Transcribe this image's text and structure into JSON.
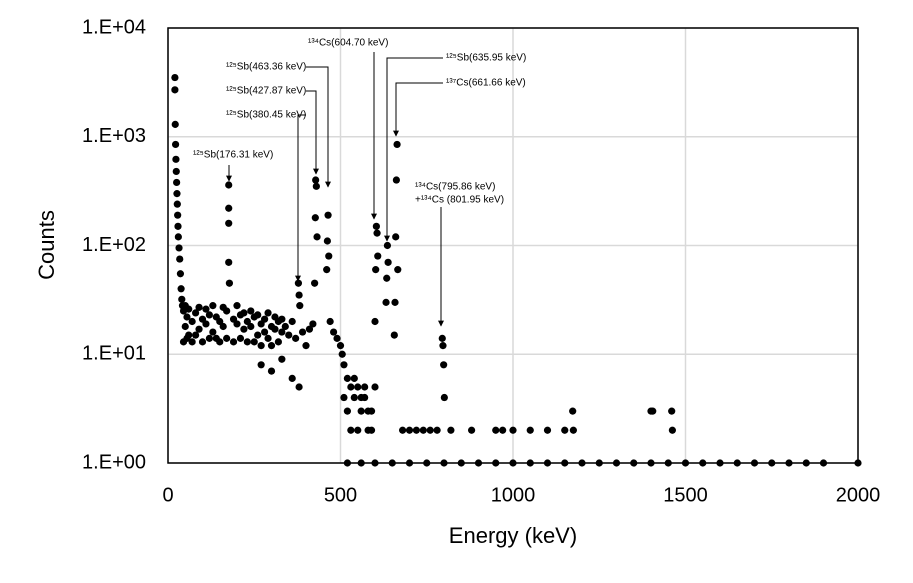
{
  "chart_data": {
    "type": "scatter",
    "xlabel": "Energy (keV)",
    "ylabel": "Counts",
    "color": "#000000",
    "grid": true,
    "log_y": true,
    "xlim": [
      0,
      2000
    ],
    "xticks": [
      0,
      500,
      1000,
      1500,
      2000
    ],
    "ylim": [
      1,
      10000
    ],
    "yticks": [
      {
        "value": 1,
        "label": "1.E+00"
      },
      {
        "value": 10,
        "label": "1.E+01"
      },
      {
        "value": 100,
        "label": "1.E+02"
      },
      {
        "value": 1000,
        "label": "1.E+03"
      },
      {
        "value": 10000,
        "label": "1.E+04"
      }
    ],
    "annotations": [
      "¹²⁵Sb(176.31 keV)",
      "¹²⁵Sb(380.45 keV)",
      "¹²⁵Sb(427.87 keV)",
      "¹²⁵Sb(463.36 keV)",
      "¹³⁴Cs(604.70 keV)",
      "¹²⁵Sb(635.95 keV)",
      "¹³⁷Cs(661.66 keV)",
      "¹³⁴Cs(795.86 keV)",
      "+¹³⁴Cs (801.95 keV)"
    ],
    "x": [
      20,
      20,
      21,
      22,
      23,
      24,
      25,
      26,
      27,
      28,
      29,
      30,
      32,
      34,
      36,
      38,
      40,
      42,
      45,
      50,
      55,
      60,
      70,
      80,
      90,
      100,
      110,
      120,
      130,
      140,
      150,
      160,
      170,
      190,
      200,
      210,
      220,
      230,
      240,
      250,
      260,
      270,
      280,
      290,
      300,
      310,
      320,
      330,
      45,
      50,
      55,
      60,
      70,
      80,
      90,
      100,
      110,
      120,
      130,
      140,
      150,
      160,
      170,
      190,
      200,
      210,
      220,
      230,
      240,
      250,
      260,
      270,
      280,
      290,
      300,
      310,
      320,
      330,
      270,
      300,
      330,
      360,
      380,
      176,
      176,
      176,
      176,
      178,
      378,
      380,
      382,
      340,
      350,
      360,
      370,
      390,
      400,
      410,
      420,
      425,
      427,
      428,
      430,
      432,
      460,
      462,
      464,
      466,
      470,
      480,
      490,
      500,
      505,
      510,
      520,
      530,
      540,
      550,
      560,
      570,
      580,
      590,
      600,
      510,
      520,
      530,
      540,
      550,
      560,
      570,
      580,
      590,
      600,
      602,
      604,
      606,
      608,
      632,
      634,
      636,
      638,
      656,
      658,
      660,
      662,
      664,
      666,
      680,
      700,
      720,
      740,
      760,
      780,
      795,
      797,
      799,
      801,
      820,
      880,
      950,
      970,
      1000,
      1050,
      1100,
      1150,
      1173,
      1175,
      1400,
      1405,
      1460,
      1462,
      520,
      560,
      600,
      650,
      700,
      750,
      800,
      850,
      900,
      950,
      1000,
      1050,
      1100,
      1150,
      1200,
      1250,
      1300,
      1350,
      1400,
      1450,
      1500,
      1550,
      1600,
      1650,
      1700,
      1750,
      1800,
      1850,
      1900,
      2000
    ],
    "values": [
      3500,
      2700,
      1300,
      850,
      620,
      480,
      380,
      300,
      240,
      190,
      150,
      120,
      95,
      75,
      55,
      40,
      32,
      28,
      25,
      18,
      22,
      15,
      20,
      24,
      17,
      21,
      19,
      23,
      16,
      22,
      20,
      18,
      25,
      21,
      19,
      23,
      17,
      20,
      18,
      22,
      15,
      19,
      16,
      14,
      18,
      17,
      20,
      16,
      13,
      28,
      14,
      26,
      13,
      15,
      27,
      13,
      26,
      14,
      28,
      14,
      13,
      27,
      14,
      13,
      28,
      14,
      24,
      13,
      25,
      13,
      23,
      12,
      21,
      24,
      12,
      22,
      13,
      21,
      8,
      7,
      9,
      6,
      5,
      360,
      220,
      160,
      70,
      45,
      45,
      35,
      28,
      18,
      15,
      20,
      14,
      16,
      12,
      17,
      19,
      45,
      180,
      400,
      350,
      120,
      60,
      110,
      190,
      80,
      20,
      16,
      14,
      12,
      10,
      8,
      6,
      5,
      4,
      5,
      3,
      4,
      2,
      3,
      5,
      4,
      3,
      2,
      6,
      2,
      4,
      5,
      3,
      2,
      20,
      60,
      150,
      130,
      80,
      30,
      50,
      100,
      70,
      15,
      30,
      120,
      400,
      850,
      60,
      2,
      2,
      2,
      2,
      2,
      2,
      14,
      12,
      8,
      4,
      2,
      2,
      2,
      2,
      2,
      2,
      2,
      2,
      3,
      2,
      3,
      3,
      3,
      2,
      1,
      1,
      1,
      1,
      1,
      1,
      1,
      1,
      1,
      1,
      1,
      1,
      1,
      1,
      1,
      1,
      1,
      1,
      1,
      1,
      1,
      1,
      1,
      1,
      1,
      1,
      1,
      1,
      1,
      1
    ]
  }
}
